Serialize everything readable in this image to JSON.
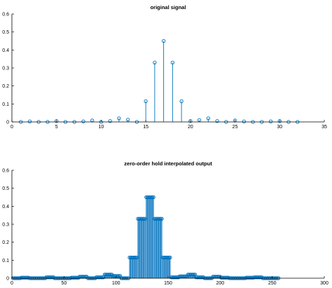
{
  "chart_data": [
    {
      "type": "stem",
      "title": "original signal",
      "xlabel": "",
      "ylabel": "",
      "xlim": [
        0,
        35
      ],
      "ylim": [
        0,
        0.6
      ],
      "xticks": [
        0,
        5,
        10,
        15,
        20,
        25,
        30,
        35
      ],
      "yticks": [
        0,
        0.1,
        0.2,
        0.3,
        0.4,
        0.5,
        0.6
      ],
      "grid": false,
      "x": [
        1,
        2,
        3,
        4,
        5,
        6,
        7,
        8,
        9,
        10,
        11,
        12,
        13,
        14,
        15,
        16,
        17,
        18,
        19,
        20,
        21,
        22,
        23,
        24,
        25,
        26,
        27,
        28,
        29,
        30,
        31,
        32
      ],
      "y": [
        0.0,
        0.003,
        0.0,
        0.0,
        0.005,
        0.0,
        0.0,
        0.003,
        0.008,
        0.0,
        0.005,
        0.02,
        0.012,
        0.0,
        0.115,
        0.33,
        0.45,
        0.33,
        0.115,
        0.005,
        0.01,
        0.02,
        0.005,
        0.0,
        0.008,
        0.003,
        0.0,
        0.0,
        0.003,
        0.005,
        0.0,
        0.0
      ],
      "color": "#0072BD"
    },
    {
      "type": "stem",
      "title": "zero-order hold interpolated output",
      "xlabel": "",
      "ylabel": "",
      "xlim": [
        0,
        300
      ],
      "ylim": [
        0,
        0.6
      ],
      "xticks": [
        0,
        50,
        100,
        150,
        200,
        250,
        300
      ],
      "yticks": [
        0,
        0.1,
        0.2,
        0.3,
        0.4,
        0.5,
        0.6
      ],
      "grid": false,
      "hold_factor": 8,
      "levels": [
        0.0,
        0.003,
        0.0,
        0.0,
        0.005,
        0.0,
        0.0,
        0.003,
        0.008,
        0.0,
        0.005,
        0.02,
        0.012,
        0.0,
        0.115,
        0.33,
        0.45,
        0.33,
        0.115,
        0.005,
        0.01,
        0.02,
        0.005,
        0.0,
        0.008,
        0.003,
        0.0,
        0.0,
        0.003,
        0.005,
        0.0,
        0.0
      ],
      "color": "#0072BD"
    }
  ]
}
